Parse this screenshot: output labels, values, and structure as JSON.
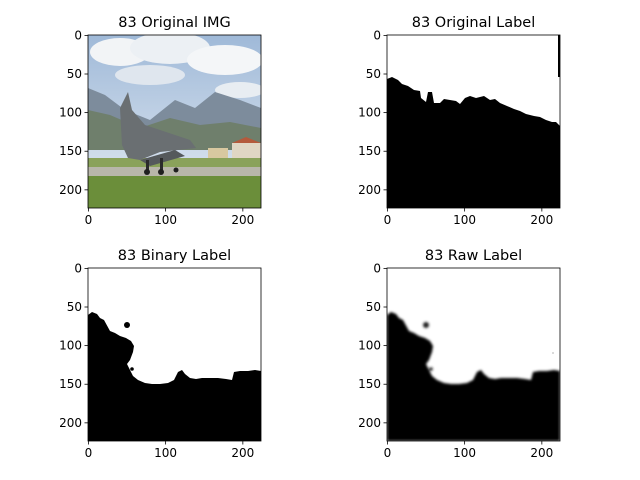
{
  "panels": [
    {
      "title": "83 Original IMG",
      "kind": "photo",
      "xticks": [
        "0",
        "100",
        "200"
      ],
      "yticks": [
        "0",
        "50",
        "100",
        "150",
        "200"
      ]
    },
    {
      "title": "83 Original Label",
      "kind": "label-original",
      "xticks": [
        "0",
        "100",
        "200"
      ],
      "yticks": [
        "0",
        "50",
        "100",
        "150",
        "200"
      ]
    },
    {
      "title": "83 Binary Label",
      "kind": "label-binary",
      "xticks": [
        "0",
        "100",
        "200"
      ],
      "yticks": [
        "0",
        "50",
        "100",
        "150",
        "200"
      ]
    },
    {
      "title": "83 Raw Label",
      "kind": "label-raw",
      "xticks": [
        "0",
        "100",
        "200"
      ],
      "yticks": [
        "0",
        "50",
        "100",
        "150",
        "200"
      ]
    }
  ],
  "image_size": [
    224,
    224
  ],
  "colors": {
    "foreground": "#000000",
    "background": "#ffffff",
    "sky": "#c9d6e6",
    "grass": "#6b8e3a"
  }
}
